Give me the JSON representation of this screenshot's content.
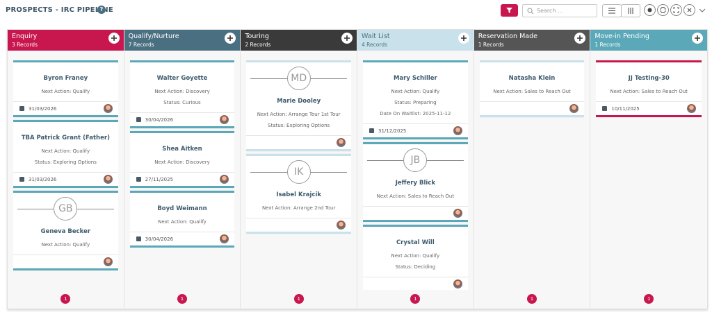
{
  "header": {
    "title": "PROSPECTS - IRC PIPELINE",
    "search_placeholder": "Search ..."
  },
  "columns": [
    {
      "title": "Enquiry",
      "records": "3 Records",
      "page": "1",
      "cards": [
        {
          "name": "Byron Franey",
          "lines": [
            "Next Action: Qualify"
          ],
          "date": "31/03/2026"
        },
        {
          "name": "TBA Patrick Grant (Father)",
          "lines": [
            "Next Action: Qualify",
            "Status: Exploring Options"
          ],
          "date": "31/03/2026"
        },
        {
          "name": "Geneva Becker",
          "initials": "GB",
          "lines": [
            "Next Action: Qualify"
          ]
        }
      ]
    },
    {
      "title": "Qualify/Nurture",
      "records": "7 Records",
      "page": "1",
      "cards": [
        {
          "name": "Walter Goyette",
          "lines": [
            "Next Action: Discovery",
            "Status: Curious"
          ],
          "date": "30/04/2026"
        },
        {
          "name": "Shea Aitken",
          "lines": [
            "Next Action: Discovery"
          ],
          "date": "27/11/2025"
        },
        {
          "name": "Boyd Weimann",
          "lines": [
            "Next Action: Qualify"
          ],
          "date": "30/04/2026"
        }
      ]
    },
    {
      "title": "Touring",
      "records": "2 Records",
      "page": "1",
      "cards": [
        {
          "name": "Marie Dooley",
          "initials": "MD",
          "lines": [
            "Next Action: Arrange Tour 1st Tour",
            "Status: Exploring Options"
          ]
        },
        {
          "name": "Isabel Krajcik",
          "initials": "IK",
          "lines": [
            "Next Action: Arrange 2nd Tour"
          ]
        }
      ]
    },
    {
      "title": "Wait List",
      "records": "4 Records",
      "page": "1",
      "cards": [
        {
          "name": "Mary Schiller",
          "lines": [
            "Next Action: Qualify",
            "Status: Preparing",
            "Date On Waitlist: 2025-11-12"
          ],
          "date": "31/12/2025"
        },
        {
          "name": "Jeffery Blick",
          "initials": "JB",
          "lines": [
            "Next Action: Sales to Reach Out"
          ]
        },
        {
          "name": "Crystal Will",
          "lines": [
            "Next Action: Qualify",
            "Status: Deciding"
          ]
        }
      ]
    },
    {
      "title": "Reservation Made",
      "records": "1 Records",
      "page": "1",
      "cards": [
        {
          "name": "Natasha Klein",
          "lines": [
            "Next Action: Sales to Reach Out"
          ]
        }
      ]
    },
    {
      "title": "Move-in Pending",
      "records": "1 Records",
      "page": "1",
      "cards": [
        {
          "name": "JJ Testing-30",
          "lines": [
            "Next Action: Sales to Reach Out"
          ],
          "date": "10/11/2025"
        }
      ]
    }
  ]
}
